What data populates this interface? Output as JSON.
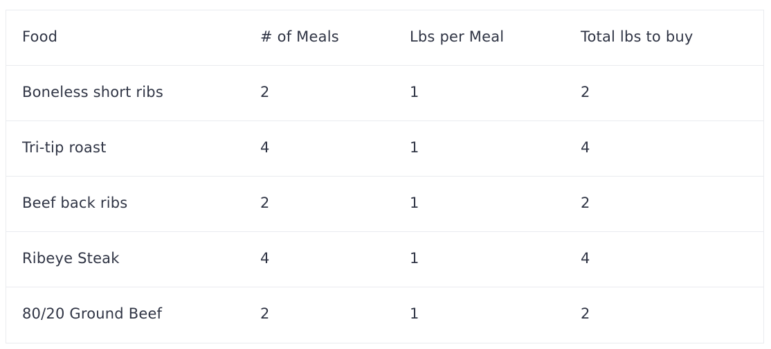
{
  "table": {
    "headers": [
      "Food",
      "# of Meals",
      "Lbs per Meal",
      "Total lbs to buy"
    ],
    "rows": [
      [
        "Boneless short ribs",
        "2",
        "1",
        "2"
      ],
      [
        "Tri-tip roast",
        "4",
        "1",
        "4"
      ],
      [
        "Beef back ribs",
        "2",
        "1",
        "2"
      ],
      [
        "Ribeye Steak",
        "4",
        "1",
        "4"
      ],
      [
        "80/20 Ground Beef",
        "2",
        "1",
        "2"
      ]
    ]
  },
  "colors": {
    "text": "#2f3444",
    "border": "#e9ebef",
    "background": "#ffffff"
  }
}
